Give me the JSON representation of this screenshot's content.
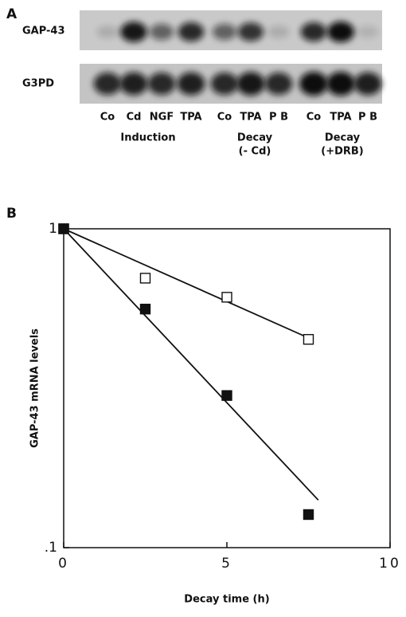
{
  "panel_a": {
    "label": "A",
    "rows": [
      "GAP-43",
      "G3PD"
    ],
    "lanes": [
      "Co",
      "Cd",
      "NGF",
      "TPA",
      "Co",
      "TPA",
      "P B",
      "Co",
      "TPA",
      "P B"
    ],
    "groups": [
      [
        "Induction"
      ],
      [
        "Decay",
        "(- Cd)"
      ],
      [
        "Decay",
        "(+DRB)"
      ]
    ]
  },
  "chart_data": {
    "type": "scatter",
    "label": "B",
    "x_label": "Decay time (h)",
    "y_label": "GAP-43 mRNA levels",
    "xlim": [
      0,
      10
    ],
    "xticks": [
      0,
      5,
      10
    ],
    "ylim": [
      0.1,
      1
    ],
    "yticks": [
      {
        "value": 0.1,
        "label": ".1"
      },
      1
    ],
    "log_y": true,
    "series": [
      {
        "color": "#111111",
        "marker_fill": "#ffffff",
        "x": [
          0,
          2.5,
          5,
          7.5
        ],
        "values": [
          1,
          0.7,
          0.61,
          0.45
        ],
        "fit_x": [
          0,
          7.6
        ],
        "fit_y": [
          1,
          0.45
        ]
      },
      {
        "color": "#111111",
        "marker_fill": "#111111",
        "x": [
          0,
          2.5,
          5,
          7.5
        ],
        "values": [
          1,
          0.56,
          0.3,
          0.127
        ],
        "fit_x": [
          0,
          7.8
        ],
        "fit_y": [
          1,
          0.141
        ]
      }
    ]
  }
}
